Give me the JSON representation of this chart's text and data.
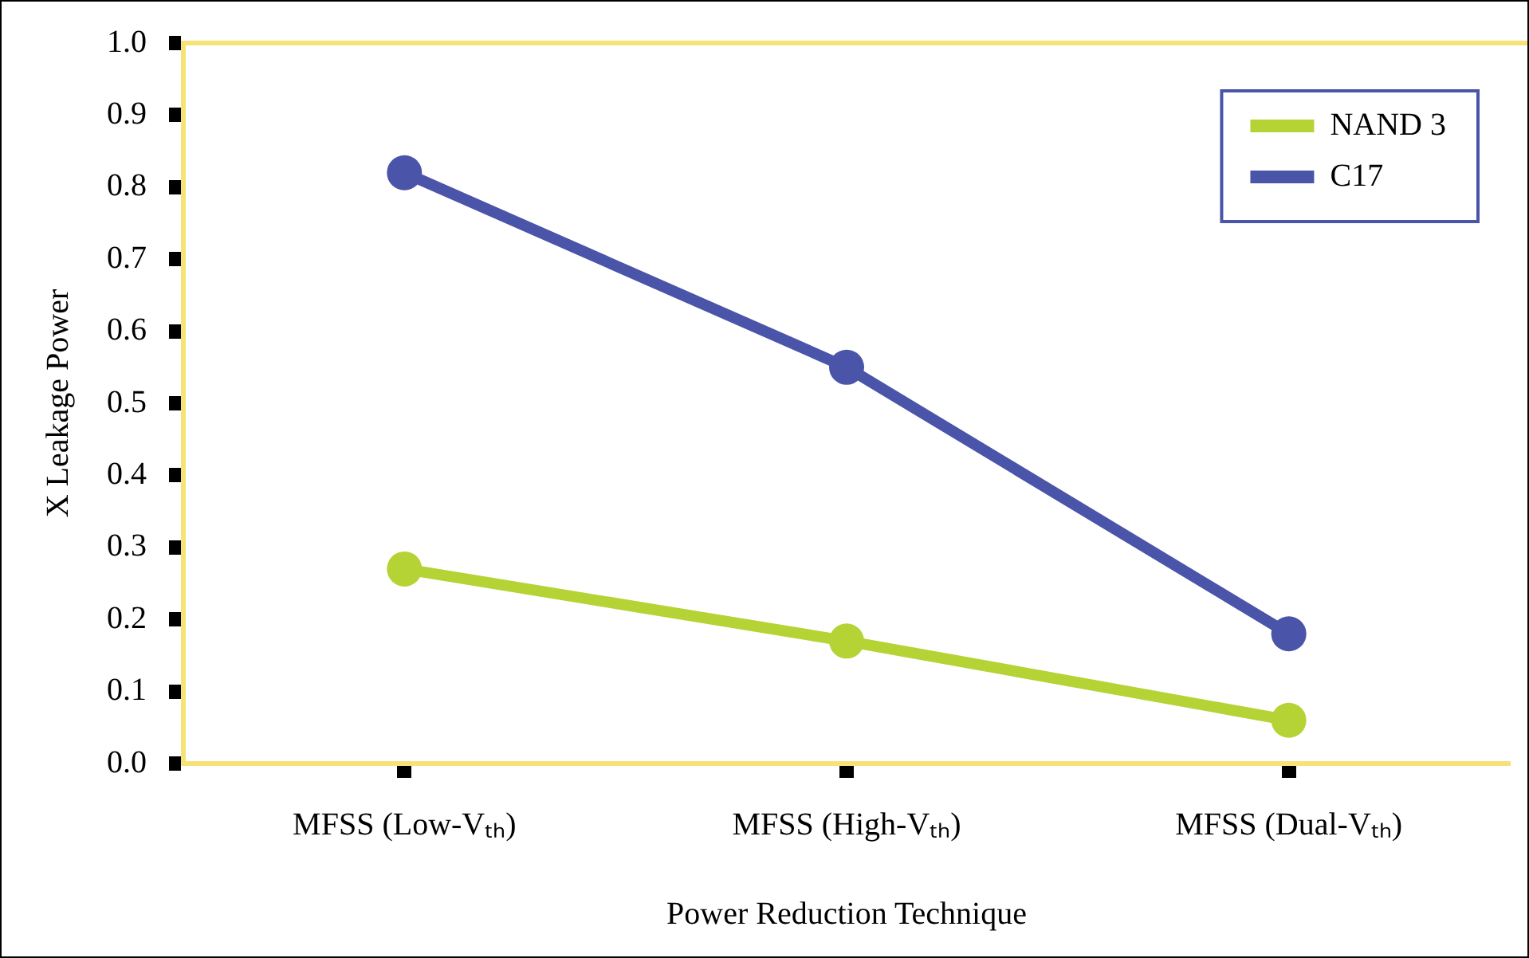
{
  "chart_data": {
    "type": "line",
    "xlabel": "Power Reduction Technique",
    "ylabel": "X Leakage Power",
    "categories": [
      "MFSS (Low-Vₜₕ)",
      "MFSS (High-Vₜₕ)",
      "MFSS (Dual-Vₜₕ)"
    ],
    "series": [
      {
        "name": "NAND 3",
        "color": "#b5d334",
        "values": [
          0.27,
          0.17,
          0.06
        ]
      },
      {
        "name": "C17",
        "color": "#4a54a8",
        "values": [
          0.82,
          0.55,
          0.18
        ]
      }
    ],
    "ylim": [
      0,
      1
    ],
    "yticks": [
      {
        "value": 0,
        "label": "0.0"
      },
      0.1,
      0.2,
      0.3,
      0.4,
      0.5,
      0.6,
      0.7,
      0.8,
      0.9,
      {
        "value": 1,
        "label": "1.0"
      }
    ],
    "grid": false,
    "legend": "top right",
    "marker": "circle",
    "line_style": "solid"
  }
}
